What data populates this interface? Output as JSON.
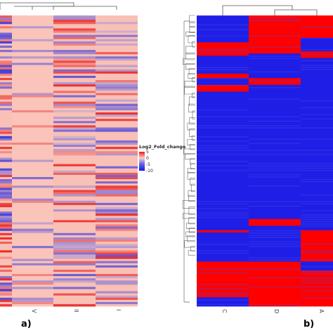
{
  "chart_data": [
    {
      "type": "heatmap",
      "panel_label": "a)",
      "columns": [
        "V",
        "II",
        "I"
      ],
      "dendrogram": "columns and rows",
      "legend": {
        "title": "Log2_Fold_change",
        "ticks": [
          5,
          0,
          -5,
          -10
        ],
        "range": [
          -10,
          5
        ]
      },
      "colors": {
        "high": "#e8191a",
        "mid": "#fbcfc4",
        "low": "#1a1adc"
      },
      "rows_count": 135,
      "column_blocks": [
        {
          "column": "first (unlabeled)",
          "from_row": 0,
          "to_row": 135,
          "note": "mixed red/blue rows"
        },
        {
          "column": "V",
          "from_row": 0,
          "to_row": 135,
          "note": "mostly light salmon, pale blue stripes"
        },
        {
          "column": "II",
          "from_row": 0,
          "to_row": 135,
          "note": "alternating red/blue stripes"
        },
        {
          "column": "I",
          "from_row": 0,
          "to_row": 135,
          "note": "alternating red/blue stripes"
        }
      ]
    },
    {
      "type": "heatmap",
      "panel_label": "b)",
      "columns": [
        "C",
        "D",
        "A"
      ],
      "dendrogram": "columns and rows",
      "colors": {
        "high": "#ff0000",
        "low": "#1e1ee6"
      },
      "blocks": [
        {
          "column": "C",
          "rows": [
            [
              0,
              12,
              "low"
            ],
            [
              12,
              18,
              "high"
            ],
            [
              18,
              26,
              "low"
            ],
            [
              26,
              28,
              "high"
            ],
            [
              28,
              31,
              "low"
            ],
            [
              31,
              34,
              "high"
            ],
            [
              34,
              96,
              "low"
            ],
            [
              96,
              97,
              "high"
            ],
            [
              97,
              110,
              "low"
            ],
            [
              110,
              126,
              "high"
            ],
            [
              126,
              130,
              "low"
            ]
          ]
        },
        {
          "column": "D",
          "rows": [
            [
              0,
              17,
              "high"
            ],
            [
              17,
              28,
              "low"
            ],
            [
              28,
              31,
              "high"
            ],
            [
              31,
              91,
              "low"
            ],
            [
              91,
              94,
              "high"
            ],
            [
              94,
              110,
              "low"
            ],
            [
              110,
              130,
              "high"
            ]
          ]
        },
        {
          "column": "A",
          "rows": [
            [
              0,
              10,
              "high"
            ],
            [
              10,
              16,
              "low"
            ],
            [
              16,
              19,
              "high"
            ],
            [
              19,
              96,
              "low"
            ],
            [
              96,
              110,
              "high"
            ],
            [
              110,
              114,
              "low"
            ],
            [
              114,
              130,
              "high"
            ]
          ]
        }
      ]
    }
  ]
}
